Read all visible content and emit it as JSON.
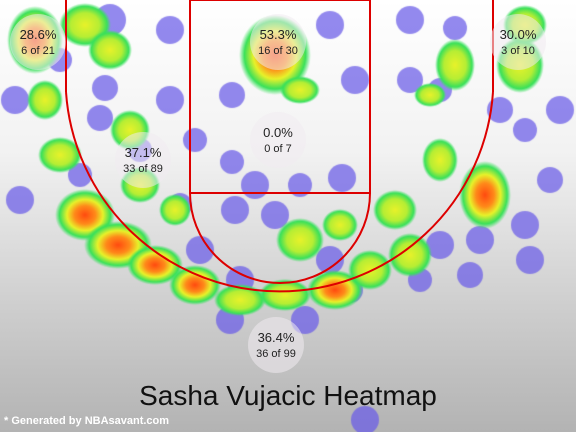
{
  "chart_data": {
    "type": "heatmap",
    "title": "Sasha Vujacic Heatmap",
    "footer": "* Generated by NBAsavant.com",
    "colors": {
      "cold": "#6a5ce8",
      "cool": "#39e05a",
      "warm": "#e8f22a",
      "hot": "#ff4a10",
      "court_lines": "#dd0000"
    },
    "zones": [
      {
        "id": "left-corner-three",
        "pct": "28.6%",
        "count": "6 of 21",
        "makes": 6,
        "attempts": 21
      },
      {
        "id": "restricted-area",
        "pct": "53.3%",
        "count": "16 of 30",
        "makes": 16,
        "attempts": 30
      },
      {
        "id": "right-corner-three",
        "pct": "30.0%",
        "count": "3 of 10",
        "makes": 3,
        "attempts": 10
      },
      {
        "id": "left-mid-range",
        "pct": "37.1%",
        "count": "33 of 89",
        "makes": 33,
        "attempts": 89
      },
      {
        "id": "paint-non-ra",
        "pct": "0.0%",
        "count": "0 of 7",
        "makes": 0,
        "attempts": 7
      },
      {
        "id": "above-break-three",
        "pct": "36.4%",
        "count": "36 of 99",
        "makes": 36,
        "attempts": 99
      }
    ]
  }
}
